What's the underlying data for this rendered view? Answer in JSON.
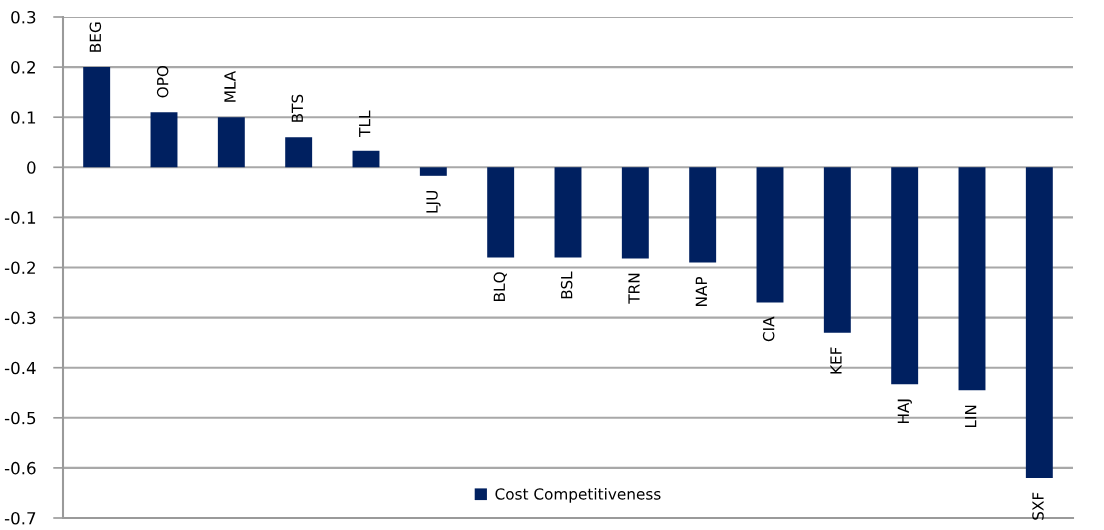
{
  "chart_data": {
    "type": "bar",
    "categories": [
      "BEG",
      "OPO",
      "MLA",
      "BTS",
      "TLL",
      "LJU",
      "BLQ",
      "BSL",
      "TRN",
      "NAP",
      "CIA",
      "KEF",
      "HAJ",
      "LIN",
      "SXF"
    ],
    "series": [
      {
        "name": "Cost Competitiveness",
        "color": "#002060",
        "values": [
          0.2,
          0.11,
          0.1,
          0.06,
          0.033,
          -0.017,
          -0.18,
          -0.18,
          -0.182,
          -0.19,
          -0.27,
          -0.33,
          -0.433,
          -0.445,
          -0.62
        ]
      }
    ],
    "ylim": [
      -0.7,
      0.3
    ],
    "yticks": [
      0.3,
      0.2,
      0.1,
      0,
      -0.1,
      -0.2,
      -0.3,
      -0.4,
      -0.5,
      -0.6,
      -0.7
    ],
    "grid": "y",
    "legend": "bottom",
    "tick_labels": "y"
  }
}
